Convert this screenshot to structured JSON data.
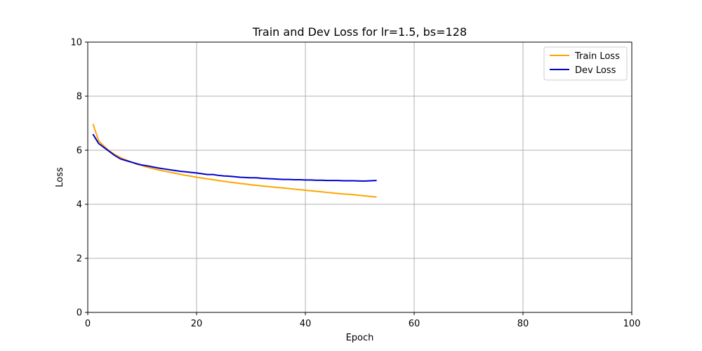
{
  "chart_data": {
    "type": "line",
    "title": "Train and Dev Loss for lr=1.5, bs=128",
    "xlabel": "Epoch",
    "ylabel": "Loss",
    "xlim": [
      0,
      100
    ],
    "ylim": [
      0,
      10
    ],
    "xticks": [
      0,
      20,
      40,
      60,
      80,
      100
    ],
    "yticks": [
      0,
      2,
      4,
      6,
      8,
      10
    ],
    "grid": true,
    "legend_position": "top-right",
    "x": [
      1,
      2,
      3,
      4,
      5,
      6,
      7,
      8,
      9,
      10,
      11,
      12,
      13,
      14,
      15,
      16,
      17,
      18,
      19,
      20,
      21,
      22,
      23,
      24,
      25,
      26,
      27,
      28,
      29,
      30,
      31,
      32,
      33,
      34,
      35,
      36,
      37,
      38,
      39,
      40,
      41,
      42,
      43,
      44,
      45,
      46,
      47,
      48,
      49,
      50,
      51,
      52,
      53
    ],
    "series": [
      {
        "name": "Train Loss",
        "color": "#ffa500",
        "values": [
          6.95,
          6.35,
          6.15,
          5.97,
          5.84,
          5.73,
          5.64,
          5.56,
          5.49,
          5.43,
          5.37,
          5.32,
          5.27,
          5.23,
          5.19,
          5.15,
          5.11,
          5.07,
          5.04,
          5.0,
          4.97,
          4.94,
          4.91,
          4.88,
          4.85,
          4.82,
          4.8,
          4.77,
          4.75,
          4.72,
          4.7,
          4.68,
          4.66,
          4.64,
          4.62,
          4.6,
          4.58,
          4.56,
          4.54,
          4.52,
          4.5,
          4.48,
          4.46,
          4.44,
          4.42,
          4.4,
          4.38,
          4.37,
          4.35,
          4.33,
          4.31,
          4.29,
          4.27
        ]
      },
      {
        "name": "Dev Loss",
        "color": "#0000cd",
        "values": [
          6.58,
          6.25,
          6.1,
          5.95,
          5.8,
          5.68,
          5.62,
          5.56,
          5.5,
          5.45,
          5.42,
          5.38,
          5.34,
          5.31,
          5.28,
          5.25,
          5.22,
          5.2,
          5.18,
          5.16,
          5.13,
          5.1,
          5.1,
          5.07,
          5.05,
          5.04,
          5.02,
          5.0,
          4.99,
          4.98,
          4.98,
          4.96,
          4.95,
          4.94,
          4.93,
          4.92,
          4.92,
          4.91,
          4.91,
          4.9,
          4.9,
          4.89,
          4.89,
          4.88,
          4.88,
          4.88,
          4.87,
          4.87,
          4.87,
          4.86,
          4.86,
          4.87,
          4.88
        ]
      }
    ]
  }
}
